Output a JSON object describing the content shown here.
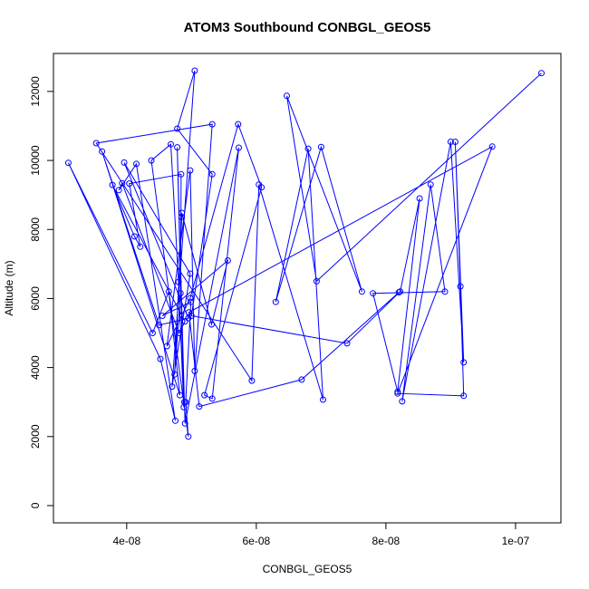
{
  "chart_data": {
    "type": "line",
    "title": "ATOM3 Southbound CONBGL_GEOS5",
    "xlabel": "CONBGL_GEOS5",
    "ylabel": "Altitude (m)",
    "xlim": [
      2.87e-08,
      1.07e-07
    ],
    "ylim": [
      -500,
      13100
    ],
    "x_ticks": [
      4e-08,
      6e-08,
      8e-08,
      1e-07
    ],
    "x_tick_labels": [
      "4e-08",
      "6e-08",
      "8e-08",
      "1e-07"
    ],
    "y_ticks": [
      0,
      2000,
      4000,
      6000,
      8000,
      10000,
      12000
    ],
    "y_tick_labels": [
      "0",
      "2000",
      "4000",
      "6000",
      "8000",
      "10000",
      "12000"
    ],
    "grid": false,
    "legend": "none",
    "series": [
      {
        "color": "#0000ff",
        "marker": "open-circle",
        "x": [
          1.04e-07,
          6.93e-08,
          6.47e-08,
          7.63e-08,
          7e-08,
          6.3e-08,
          6.8e-08,
          7.03e-08,
          6.04e-08,
          5.93e-08,
          3.53e-08,
          5.32e-08,
          5.05e-08,
          4.98e-08,
          4.62e-08,
          4.98e-08,
          5.72e-08,
          6.08e-08,
          5.2e-08,
          5.32e-08,
          5.73e-08,
          4.9e-08,
          4.89e-08,
          4.78e-08,
          4.88e-08,
          4.8e-08,
          4.68e-08,
          4.38e-08,
          4.95e-08,
          4.91e-08,
          4.99e-08,
          4.55e-08,
          5.56e-08,
          5.31e-08,
          4.85e-08,
          4.85e-08,
          4.74e-08,
          4.83e-08,
          4.84e-08,
          4.04e-08,
          4.21e-08,
          4.12e-08,
          3.78e-08,
          4.9e-08,
          4.81e-08,
          3.93e-08,
          3.88e-08,
          4.15e-08,
          4.75e-08,
          4.52e-08,
          3.1e-08,
          4.4e-08,
          4.65e-08,
          4.82e-08,
          3.62e-08,
          4.5e-08,
          4.95e-08,
          3.96e-08,
          4.98e-08,
          4.7e-08,
          5.05e-08,
          4.78e-08,
          5.32e-08,
          5e-08,
          7.4e-08,
          8.22e-08,
          8.52e-08,
          8.18e-08,
          7.8e-08,
          8.91e-08,
          8.69e-08,
          8.25e-08,
          9e-08,
          9.2e-08,
          9.07e-08,
          9.15e-08,
          9.2e-08,
          8.18e-08,
          9.64e-08,
          4.96e-08,
          5.12e-08,
          6.7e-08,
          8.2e-08
        ],
        "y": [
          12530,
          6500,
          11870,
          6200,
          10390,
          5900,
          10340,
          3070,
          9300,
          3620,
          10500,
          11050,
          3900,
          9710,
          4620,
          6010,
          11050,
          9220,
          3200,
          3100,
          10370,
          2380,
          3000,
          10380,
          2850,
          6480,
          10470,
          10000,
          2000,
          3000,
          5900,
          5500,
          7100,
          5250,
          8480,
          8360,
          3800,
          6150,
          9600,
          9330,
          7500,
          7800,
          9290,
          5340,
          5000,
          9340,
          9140,
          9900,
          2460,
          4250,
          9930,
          5000,
          6200,
          3200,
          10260,
          5230,
          5430,
          9940,
          6720,
          3450,
          12600,
          10920,
          9600,
          5500,
          4700,
          6200,
          8900,
          3300,
          6150,
          6200,
          9300,
          3020,
          10540,
          4150,
          10540,
          6350,
          3180,
          3250,
          10400,
          5600,
          2870,
          3650,
          6180
        ]
      }
    ]
  }
}
